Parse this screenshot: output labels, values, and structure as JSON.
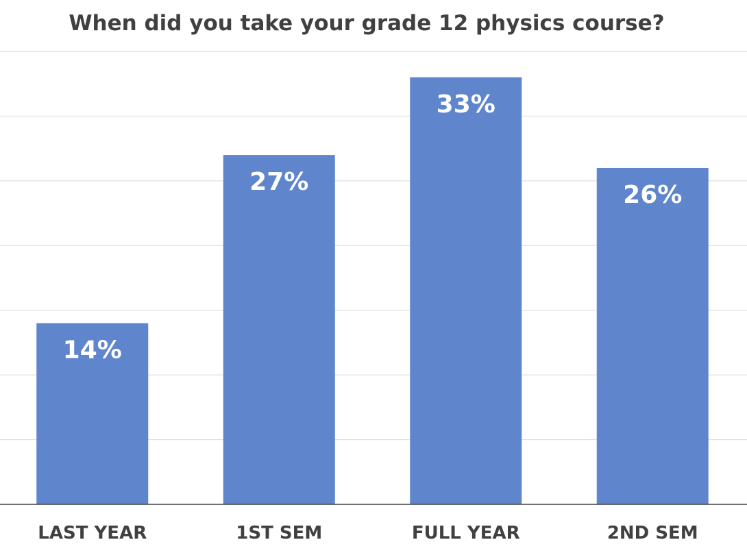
{
  "chart_data": {
    "type": "bar",
    "title": "When did you take your grade 12 physics course?",
    "categories": [
      "LAST YEAR",
      "1ST SEM",
      "FULL YEAR",
      "2ND SEM"
    ],
    "values": [
      14,
      27,
      33,
      26
    ],
    "value_labels": [
      "14%",
      "27%",
      "33%",
      "26%"
    ],
    "ylim": [
      0,
      35
    ],
    "y_unit": "%",
    "grid": true,
    "gridline_step": 5,
    "legend": "none",
    "xlabel": "",
    "ylabel": "",
    "bar_color": "#5f86cc"
  }
}
